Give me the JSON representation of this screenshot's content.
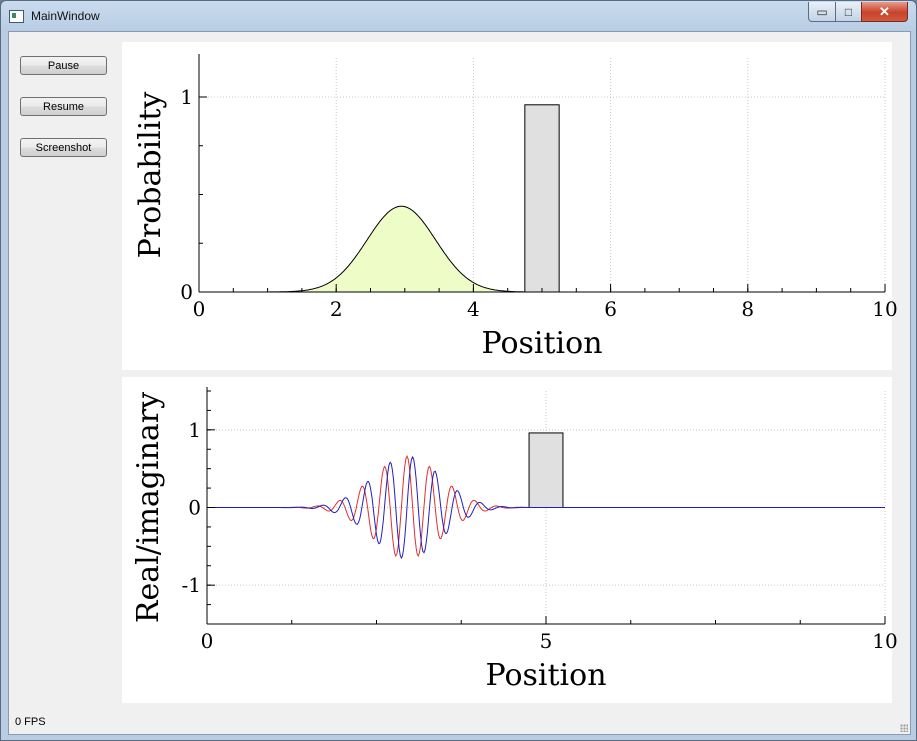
{
  "window": {
    "title": "MainWindow",
    "icon": "app-window-icon"
  },
  "controls": {
    "minimize": "minimize-icon",
    "maximize": "maximize-icon",
    "close": "close-icon"
  },
  "buttons": {
    "pause": "Pause",
    "resume": "Resume",
    "screenshot": "Screenshot"
  },
  "status": {
    "fps": "0 FPS"
  },
  "chart_data": [
    {
      "type": "area",
      "xlabel": "Position",
      "ylabel": "Probability",
      "xlim": [
        0,
        10
      ],
      "ylim": [
        0,
        1.2
      ],
      "xticks": [
        "0",
        "2",
        "4",
        "6",
        "8",
        "10"
      ],
      "yticks": [
        "0",
        "1"
      ],
      "grid": true,
      "series": [
        {
          "kind": "gaussian",
          "center": 2.95,
          "peak": 0.44,
          "sigma": 0.5,
          "fill": "#eefcc8",
          "stroke": "#000000"
        }
      ],
      "barrier": {
        "x_start": 4.75,
        "x_end": 5.25,
        "height": 0.96,
        "fill": "#e0e0e0"
      }
    },
    {
      "type": "line",
      "xlabel": "Position",
      "ylabel": "Real/imaginary",
      "xlim": [
        0,
        10
      ],
      "ylim": [
        -1.5,
        1.5
      ],
      "xticks": [
        "0",
        "5",
        "10"
      ],
      "yticks": [
        "-1",
        "0",
        "1"
      ],
      "grid": true,
      "series": [
        {
          "kind": "wave-packet",
          "part": "real",
          "color": "#e03030",
          "center": 2.95,
          "amplitude": 0.66,
          "sigma": 0.5,
          "k": 18.9
        },
        {
          "kind": "wave-packet",
          "part": "imaginary",
          "color": "#2020c0",
          "center": 2.95,
          "amplitude": 0.66,
          "sigma": 0.5,
          "k": 18.9
        }
      ],
      "barrier": {
        "x_start": 4.75,
        "x_end": 5.25,
        "height": 0.96,
        "fill": "#e0e0e0"
      }
    }
  ]
}
